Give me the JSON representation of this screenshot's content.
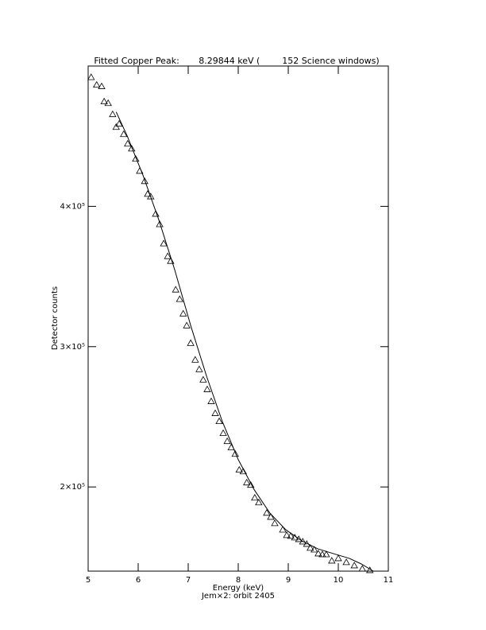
{
  "chart_data": {
    "type": "scatter",
    "title": "Fitted Copper Peak:       8.29844 keV (        152 Science windows)",
    "x_label": "Energy (keV)",
    "subtitle": "Jem×2: orbit 2405",
    "y_label": "Detector counts",
    "xlim": [
      5,
      11
    ],
    "xticks": [
      5,
      6,
      7,
      8,
      9,
      10,
      11
    ],
    "ylim": [
      140000,
      500000
    ],
    "yticks": [
      {
        "value": 200000,
        "label": "2×10⁵"
      },
      {
        "value": 300000,
        "label": "3×10⁵"
      },
      {
        "value": 400000,
        "label": "4×10⁵"
      }
    ],
    "color": "#000000",
    "points": {
      "x": [
        5.06,
        5.17,
        5.27,
        5.32,
        5.4,
        5.49,
        5.56,
        5.62,
        5.71,
        5.79,
        5.87,
        5.95,
        6.03,
        6.13,
        6.19,
        6.25,
        6.35,
        6.43,
        6.51,
        6.59,
        6.65,
        6.75,
        6.83,
        6.9,
        6.97,
        7.05,
        7.14,
        7.22,
        7.3,
        7.38,
        7.46,
        7.54,
        7.62,
        7.7,
        7.78,
        7.86,
        7.94,
        8.02,
        8.1,
        8.17,
        8.25,
        8.33,
        8.41,
        8.57,
        8.65,
        8.73,
        8.89,
        8.97,
        9.05,
        9.13,
        9.21,
        9.29,
        9.37,
        9.44,
        9.52,
        9.6,
        9.68,
        9.76,
        9.87,
        10.0,
        10.16,
        10.32,
        10.48,
        10.63
      ],
      "y": [
        492000,
        486600,
        485500,
        474700,
        473500,
        465600,
        456500,
        458800,
        451400,
        444600,
        441100,
        433800,
        425200,
        417900,
        408800,
        407000,
        394600,
        387200,
        373500,
        364400,
        361000,
        340600,
        333800,
        323500,
        315000,
        302500,
        290600,
        283800,
        276400,
        269500,
        261000,
        252500,
        246800,
        238300,
        232600,
        228100,
        223500,
        212200,
        211000,
        203100,
        201400,
        192300,
        188900,
        181500,
        178600,
        174100,
        169500,
        165600,
        165000,
        163900,
        162700,
        161000,
        159300,
        156500,
        155300,
        152500,
        151900,
        151900,
        147400,
        149100,
        146300,
        144000,
        141700,
        140600
      ]
    },
    "fit": {
      "x": [
        5.56,
        5.78,
        6.1,
        6.41,
        6.73,
        7.05,
        7.37,
        7.68,
        8.0,
        8.32,
        8.63,
        8.95,
        9.27,
        9.59,
        9.9,
        10.22,
        10.46,
        10.7
      ],
      "y": [
        467300,
        450200,
        421800,
        390600,
        354800,
        315000,
        278600,
        246800,
        219500,
        198000,
        181500,
        169500,
        161600,
        155900,
        152500,
        149100,
        145100,
        140000
      ]
    }
  }
}
